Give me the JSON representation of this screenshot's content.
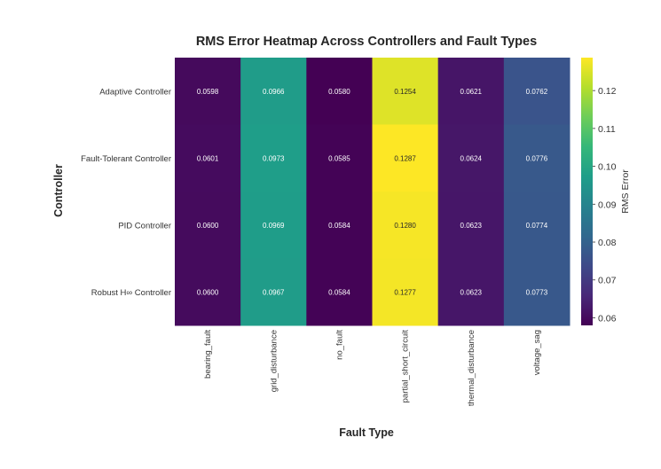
{
  "chart_data": {
    "type": "heatmap",
    "title": "RMS Error Heatmap Across Controllers and Fault Types",
    "xlabel": "Fault Type",
    "ylabel": "Controller",
    "x_categories": [
      "bearing_fault",
      "grid_disturbance",
      "no_fault",
      "partial_short_circuit",
      "thermal_disturbance",
      "voltage_sag"
    ],
    "y_categories": [
      "Adaptive Controller",
      "Fault-Tolerant Controller",
      "PID Controller",
      "Robust H∞ Controller"
    ],
    "values": [
      [
        0.0598,
        0.0966,
        0.058,
        0.1254,
        0.0621,
        0.0762
      ],
      [
        0.0601,
        0.0973,
        0.0585,
        0.1287,
        0.0624,
        0.0776
      ],
      [
        0.06,
        0.0969,
        0.0584,
        0.128,
        0.0623,
        0.0774
      ],
      [
        0.06,
        0.0967,
        0.0584,
        0.1277,
        0.0623,
        0.0773
      ]
    ],
    "cell_labels": [
      [
        "0.0598",
        "0.0966",
        "0.0580",
        "0.1254",
        "0.0621",
        "0.0762"
      ],
      [
        "0.0601",
        "0.0973",
        "0.0585",
        "0.1287",
        "0.0624",
        "0.0776"
      ],
      [
        "0.0600",
        "0.0969",
        "0.0584",
        "0.1280",
        "0.0623",
        "0.0774"
      ],
      [
        "0.0600",
        "0.0967",
        "0.0584",
        "0.1277",
        "0.0623",
        "0.0773"
      ]
    ],
    "colormap": "viridis",
    "colorbar": {
      "label": "RMS Error",
      "vmin": 0.058,
      "vmax": 0.1287,
      "ticks": [
        0.06,
        0.07,
        0.08,
        0.09,
        0.1,
        0.11,
        0.12
      ],
      "tick_labels": [
        "0.06",
        "0.07",
        "0.08",
        "0.09",
        "0.10",
        "0.11",
        "0.12"
      ]
    }
  }
}
